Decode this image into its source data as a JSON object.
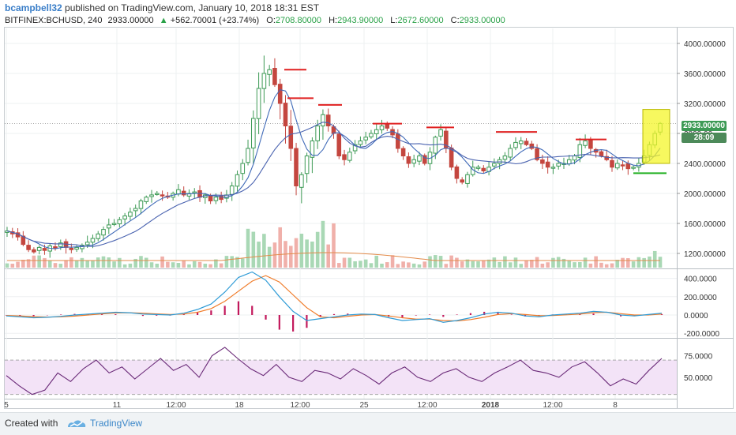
{
  "publisher": {
    "username": "bcampbell32",
    "text": " published on TradingView.com, January 10, 2018 18:31 EST"
  },
  "symbol_bar": {
    "symbol": "BITFINEX:BCHUSD, 240",
    "last": "2933.00000",
    "change_arrow": "▲",
    "change": "+562.70001 (+23.74%)",
    "open_label": "O:",
    "open": "2708.80000",
    "high_label": "H:",
    "high": "2943.90000",
    "low_label": "L:",
    "low": "2672.60000",
    "close_label": "C:",
    "close": "2933.00000"
  },
  "price_axis": {
    "ticks": [
      "4000.00000",
      "3600.00000",
      "3200.00000",
      "2800.00",
      "2400.00000",
      "2000.00000",
      "1600.00000",
      "1200.00000"
    ],
    "last_price_badge": "2933.00000",
    "countdown_badge": "28:09"
  },
  "macd_axis": {
    "ticks": [
      "400.0000",
      "200.0000",
      "0.0000",
      "-200.0000"
    ]
  },
  "rsi_axis": {
    "ticks": [
      "75.0000",
      "50.0000"
    ]
  },
  "time_axis": {
    "ticks": [
      "5",
      "11",
      "12:00",
      "18",
      "12:00",
      "25",
      "12:00",
      "2018",
      "12:00",
      "8"
    ],
    "bold_index": 7
  },
  "footer": {
    "created_with": "Created with",
    "brand": "TradingView"
  },
  "colors": {
    "up": "#3d9a55",
    "down": "#c4463f",
    "ma_slow": "#4a63b0",
    "ma_fast": "#3f6ab8",
    "macd_line": "#2e9bd6",
    "signal_line": "#f07c2a",
    "histogram": "#c2185b",
    "rsi_line": "#6a2a78",
    "rsi_band": "#f3e3f7",
    "resistance": "#e02020",
    "support": "#22b022",
    "highlight": "#f4f52a",
    "badge_price": "#3d9a55",
    "badge_timer": "#4d8a5a"
  },
  "chart_data": [
    {
      "type": "candlestick",
      "panel": "price",
      "symbol": "BITFINEX:BCHUSD",
      "interval": "240",
      "ylim": [
        1000,
        4200
      ],
      "x_ticks": [
        "5",
        "11",
        "12:00",
        "18",
        "12:00",
        "25",
        "12:00",
        "2018",
        "12:00",
        "8"
      ],
      "close_path": [
        1500,
        1460,
        1420,
        1320,
        1250,
        1220,
        1280,
        1240,
        1300,
        1280,
        1340,
        1280,
        1250,
        1280,
        1310,
        1350,
        1400,
        1460,
        1520,
        1580,
        1600,
        1650,
        1700,
        1750,
        1800,
        1900,
        1950,
        1980,
        2000,
        1980,
        1950,
        2000,
        2050,
        1980,
        2000,
        2020,
        1950,
        1980,
        1900,
        1950,
        1920,
        1980,
        2100,
        2250,
        2400,
        2600,
        3000,
        3400,
        3600,
        3650,
        3450,
        3200,
        2900,
        2600,
        2100,
        2250,
        2500,
        2700,
        2900,
        3050,
        2900,
        2800,
        2500,
        2450,
        2550,
        2650,
        2700,
        2750,
        2800,
        2850,
        2900,
        2870,
        2780,
        2600,
        2500,
        2400,
        2450,
        2500,
        2400,
        2550,
        2750,
        2850,
        2600,
        2350,
        2200,
        2150,
        2250,
        2350,
        2350,
        2300,
        2350,
        2400,
        2450,
        2500,
        2600,
        2680,
        2700,
        2650,
        2600,
        2450,
        2400,
        2350,
        2350,
        2400,
        2400,
        2450,
        2500,
        2650,
        2700,
        2600,
        2550,
        2500,
        2450,
        2350,
        2400,
        2380,
        2330,
        2350,
        2400,
        2500,
        2650,
        2800,
        2933
      ],
      "last": 2933,
      "open": 2708.8,
      "high": 2943.9,
      "low": 2672.6,
      "close": 2933,
      "resistance_levels": [
        3650,
        3270,
        3180,
        2930,
        2880,
        2820,
        2720
      ],
      "support_levels": [
        2270
      ],
      "series": [
        {
          "name": "",
          "kind": "moving-average"
        },
        {
          "name": "",
          "kind": "moving-average"
        },
        {
          "name": "",
          "kind": "volume"
        }
      ]
    },
    {
      "type": "line",
      "panel": "macd",
      "ylim": [
        -250,
        500
      ],
      "y_ticks": [
        400,
        200,
        0,
        -200
      ],
      "macd": [
        -10,
        -20,
        -30,
        -25,
        -15,
        0,
        10,
        20,
        30,
        25,
        10,
        5,
        0,
        20,
        60,
        120,
        250,
        410,
        470,
        380,
        200,
        40,
        -60,
        -40,
        -20,
        0,
        10,
        5,
        -30,
        -60,
        -50,
        -40,
        -80,
        -60,
        -30,
        10,
        30,
        20,
        -10,
        -20,
        0,
        10,
        20,
        40,
        30,
        0,
        -10,
        5,
        20
      ],
      "signal": [
        -5,
        -10,
        -18,
        -22,
        -20,
        -12,
        0,
        12,
        22,
        25,
        20,
        12,
        6,
        10,
        30,
        70,
        150,
        260,
        370,
        430,
        360,
        220,
        80,
        -20,
        -30,
        -15,
        0,
        5,
        -10,
        -30,
        -45,
        -45,
        -60,
        -65,
        -50,
        -25,
        5,
        15,
        5,
        -8,
        -6,
        2,
        10,
        25,
        30,
        15,
        0,
        0,
        10
      ],
      "series": [
        {
          "name": ""
        },
        {
          "name": ""
        },
        {
          "name": ""
        }
      ]
    },
    {
      "type": "line",
      "panel": "rsi",
      "ylim": [
        25,
        95
      ],
      "band": [
        30,
        70
      ],
      "y_ticks": [
        75,
        50
      ],
      "values": [
        52,
        40,
        30,
        35,
        55,
        45,
        60,
        70,
        55,
        62,
        48,
        60,
        72,
        58,
        65,
        50,
        75,
        85,
        72,
        60,
        52,
        65,
        50,
        45,
        58,
        55,
        48,
        60,
        52,
        42,
        55,
        62,
        50,
        45,
        55,
        60,
        50,
        45,
        55,
        62,
        70,
        58,
        55,
        50,
        62,
        68,
        55,
        40,
        48,
        42,
        58,
        72
      ],
      "series": [
        {
          "name": ""
        }
      ]
    }
  ]
}
